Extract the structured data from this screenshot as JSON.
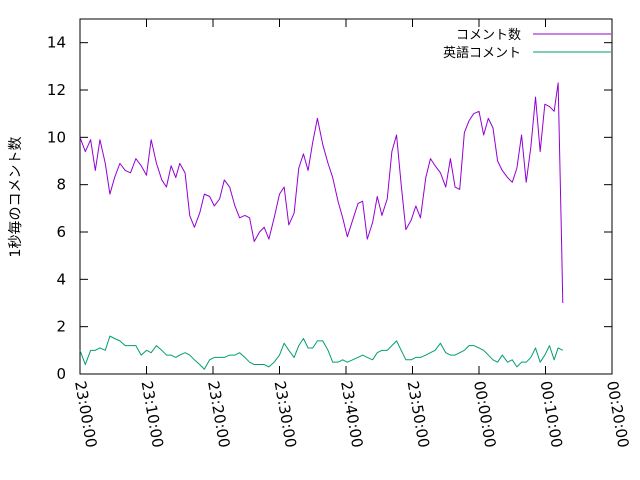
{
  "chart_data": {
    "type": "line",
    "title": "",
    "xlabel": "",
    "ylabel": "1秒毎のコメント数",
    "ylim": [
      0,
      15
    ],
    "yticks": [
      "0",
      "2",
      "4",
      "6",
      "8",
      "10",
      "12",
      "14"
    ],
    "ytick_values": [
      0,
      2,
      4,
      6,
      8,
      10,
      12,
      14
    ],
    "xlim": [
      "23:00:00",
      "00:20:00"
    ],
    "xticks": [
      "23:00:00",
      "23:10:00",
      "23:20:00",
      "23:30:00",
      "23:40:00",
      "23:50:00",
      "00:00:00",
      "00:10:00",
      "00:20:00"
    ],
    "xtick_values": [
      0,
      10,
      20,
      30,
      40,
      50,
      60,
      70,
      80
    ],
    "x_unit": "minutes since 23:00:00",
    "grid": false,
    "legend_position": "top-right",
    "series": [
      {
        "name": "コメント数",
        "color": "#9400d3",
        "points": [
          [
            0,
            10.0
          ],
          [
            0.8,
            9.4
          ],
          [
            1.6,
            9.9
          ],
          [
            2.3,
            8.6
          ],
          [
            3.0,
            9.9
          ],
          [
            3.8,
            8.9
          ],
          [
            4.5,
            7.6
          ],
          [
            5.2,
            8.3
          ],
          [
            6.0,
            8.9
          ],
          [
            6.8,
            8.6
          ],
          [
            7.6,
            8.5
          ],
          [
            8.4,
            9.1
          ],
          [
            9.2,
            8.8
          ],
          [
            10.0,
            8.4
          ],
          [
            10.7,
            9.9
          ],
          [
            11.5,
            8.9
          ],
          [
            12.3,
            8.2
          ],
          [
            13.0,
            7.9
          ],
          [
            13.7,
            8.8
          ],
          [
            14.4,
            8.3
          ],
          [
            15.0,
            8.9
          ],
          [
            15.8,
            8.5
          ],
          [
            16.5,
            6.7
          ],
          [
            17.2,
            6.2
          ],
          [
            18.0,
            6.8
          ],
          [
            18.7,
            7.6
          ],
          [
            19.5,
            7.5
          ],
          [
            20.2,
            7.1
          ],
          [
            21.0,
            7.4
          ],
          [
            21.7,
            8.2
          ],
          [
            22.5,
            7.9
          ],
          [
            23.3,
            7.1
          ],
          [
            24.0,
            6.6
          ],
          [
            24.8,
            6.7
          ],
          [
            25.5,
            6.6
          ],
          [
            26.2,
            5.6
          ],
          [
            27.0,
            6.0
          ],
          [
            27.7,
            6.2
          ],
          [
            28.4,
            5.7
          ],
          [
            29.2,
            6.6
          ],
          [
            30.0,
            7.6
          ],
          [
            30.7,
            7.9
          ],
          [
            31.4,
            6.3
          ],
          [
            32.2,
            6.8
          ],
          [
            32.9,
            8.7
          ],
          [
            33.6,
            9.3
          ],
          [
            34.3,
            8.6
          ],
          [
            35.0,
            9.8
          ],
          [
            35.7,
            10.8
          ],
          [
            36.5,
            9.7
          ],
          [
            37.3,
            8.9
          ],
          [
            38.0,
            8.3
          ],
          [
            38.8,
            7.3
          ],
          [
            39.5,
            6.6
          ],
          [
            40.2,
            5.8
          ],
          [
            41.0,
            6.5
          ],
          [
            41.8,
            7.2
          ],
          [
            42.5,
            7.3
          ],
          [
            43.2,
            5.7
          ],
          [
            44.0,
            6.4
          ],
          [
            44.7,
            7.5
          ],
          [
            45.4,
            6.7
          ],
          [
            46.2,
            7.4
          ],
          [
            46.9,
            9.4
          ],
          [
            47.6,
            10.1
          ],
          [
            48.3,
            8.0
          ],
          [
            49.0,
            6.1
          ],
          [
            49.8,
            6.5
          ],
          [
            50.5,
            7.1
          ],
          [
            51.2,
            6.6
          ],
          [
            52.0,
            8.3
          ],
          [
            52.7,
            9.1
          ],
          [
            53.4,
            8.8
          ],
          [
            54.2,
            8.5
          ],
          [
            55.0,
            7.9
          ],
          [
            55.7,
            9.1
          ],
          [
            56.4,
            7.9
          ],
          [
            57.1,
            7.8
          ],
          [
            57.8,
            10.2
          ],
          [
            58.5,
            10.7
          ],
          [
            59.2,
            11.0
          ],
          [
            60.0,
            11.1
          ],
          [
            60.7,
            10.1
          ],
          [
            61.4,
            10.8
          ],
          [
            62.1,
            10.4
          ],
          [
            62.8,
            9.0
          ],
          [
            63.5,
            8.6
          ],
          [
            64.3,
            8.3
          ],
          [
            65.0,
            8.1
          ],
          [
            65.7,
            8.7
          ],
          [
            66.4,
            10.1
          ],
          [
            67.1,
            8.1
          ],
          [
            67.8,
            9.6
          ],
          [
            68.5,
            11.7
          ],
          [
            69.2,
            9.4
          ],
          [
            69.9,
            11.4
          ],
          [
            70.6,
            11.3
          ],
          [
            71.3,
            11.1
          ],
          [
            71.9,
            12.3
          ],
          [
            72.4,
            5.8
          ],
          [
            72.6,
            3.0
          ]
        ]
      },
      {
        "name": "英語コメント",
        "color": "#009e73",
        "points": [
          [
            0,
            1.0
          ],
          [
            0.8,
            0.4
          ],
          [
            1.6,
            1.0
          ],
          [
            2.3,
            1.0
          ],
          [
            3.0,
            1.1
          ],
          [
            3.8,
            1.0
          ],
          [
            4.5,
            1.6
          ],
          [
            5.2,
            1.5
          ],
          [
            6.0,
            1.4
          ],
          [
            6.8,
            1.2
          ],
          [
            7.6,
            1.2
          ],
          [
            8.4,
            1.2
          ],
          [
            9.2,
            0.8
          ],
          [
            10.0,
            1.0
          ],
          [
            10.7,
            0.9
          ],
          [
            11.5,
            1.2
          ],
          [
            12.3,
            1.0
          ],
          [
            13.0,
            0.8
          ],
          [
            13.7,
            0.8
          ],
          [
            14.4,
            0.7
          ],
          [
            15.0,
            0.8
          ],
          [
            15.8,
            0.9
          ],
          [
            16.5,
            0.8
          ],
          [
            17.2,
            0.6
          ],
          [
            18.0,
            0.4
          ],
          [
            18.7,
            0.2
          ],
          [
            19.5,
            0.6
          ],
          [
            20.2,
            0.7
          ],
          [
            21.0,
            0.7
          ],
          [
            21.7,
            0.7
          ],
          [
            22.5,
            0.8
          ],
          [
            23.3,
            0.8
          ],
          [
            24.0,
            0.9
          ],
          [
            24.8,
            0.7
          ],
          [
            25.5,
            0.5
          ],
          [
            26.2,
            0.4
          ],
          [
            27.0,
            0.4
          ],
          [
            27.7,
            0.4
          ],
          [
            28.4,
            0.3
          ],
          [
            29.2,
            0.5
          ],
          [
            30.0,
            0.8
          ],
          [
            30.7,
            1.3
          ],
          [
            31.4,
            1.0
          ],
          [
            32.2,
            0.7
          ],
          [
            32.9,
            1.2
          ],
          [
            33.6,
            1.5
          ],
          [
            34.3,
            1.1
          ],
          [
            35.0,
            1.1
          ],
          [
            35.7,
            1.4
          ],
          [
            36.5,
            1.4
          ],
          [
            37.3,
            1.0
          ],
          [
            38.0,
            0.5
          ],
          [
            38.8,
            0.5
          ],
          [
            39.5,
            0.6
          ],
          [
            40.2,
            0.5
          ],
          [
            41.0,
            0.6
          ],
          [
            41.8,
            0.7
          ],
          [
            42.5,
            0.8
          ],
          [
            43.2,
            0.7
          ],
          [
            44.0,
            0.6
          ],
          [
            44.7,
            0.9
          ],
          [
            45.4,
            1.0
          ],
          [
            46.2,
            1.0
          ],
          [
            46.9,
            1.2
          ],
          [
            47.6,
            1.4
          ],
          [
            48.3,
            1.0
          ],
          [
            49.0,
            0.6
          ],
          [
            49.8,
            0.6
          ],
          [
            50.5,
            0.7
          ],
          [
            51.2,
            0.7
          ],
          [
            52.0,
            0.8
          ],
          [
            52.7,
            0.9
          ],
          [
            53.4,
            1.0
          ],
          [
            54.2,
            1.3
          ],
          [
            55.0,
            0.9
          ],
          [
            55.7,
            0.8
          ],
          [
            56.4,
            0.8
          ],
          [
            57.1,
            0.9
          ],
          [
            57.8,
            1.0
          ],
          [
            58.5,
            1.2
          ],
          [
            59.2,
            1.2
          ],
          [
            60.0,
            1.1
          ],
          [
            60.7,
            1.0
          ],
          [
            61.4,
            0.8
          ],
          [
            62.1,
            0.6
          ],
          [
            62.8,
            0.5
          ],
          [
            63.5,
            0.8
          ],
          [
            64.3,
            0.5
          ],
          [
            65.0,
            0.6
          ],
          [
            65.7,
            0.3
          ],
          [
            66.4,
            0.5
          ],
          [
            67.1,
            0.5
          ],
          [
            67.8,
            0.7
          ],
          [
            68.5,
            1.1
          ],
          [
            69.2,
            0.5
          ],
          [
            69.9,
            0.8
          ],
          [
            70.6,
            1.2
          ],
          [
            71.3,
            0.6
          ],
          [
            71.9,
            1.1
          ],
          [
            72.6,
            1.0
          ]
        ]
      }
    ]
  }
}
